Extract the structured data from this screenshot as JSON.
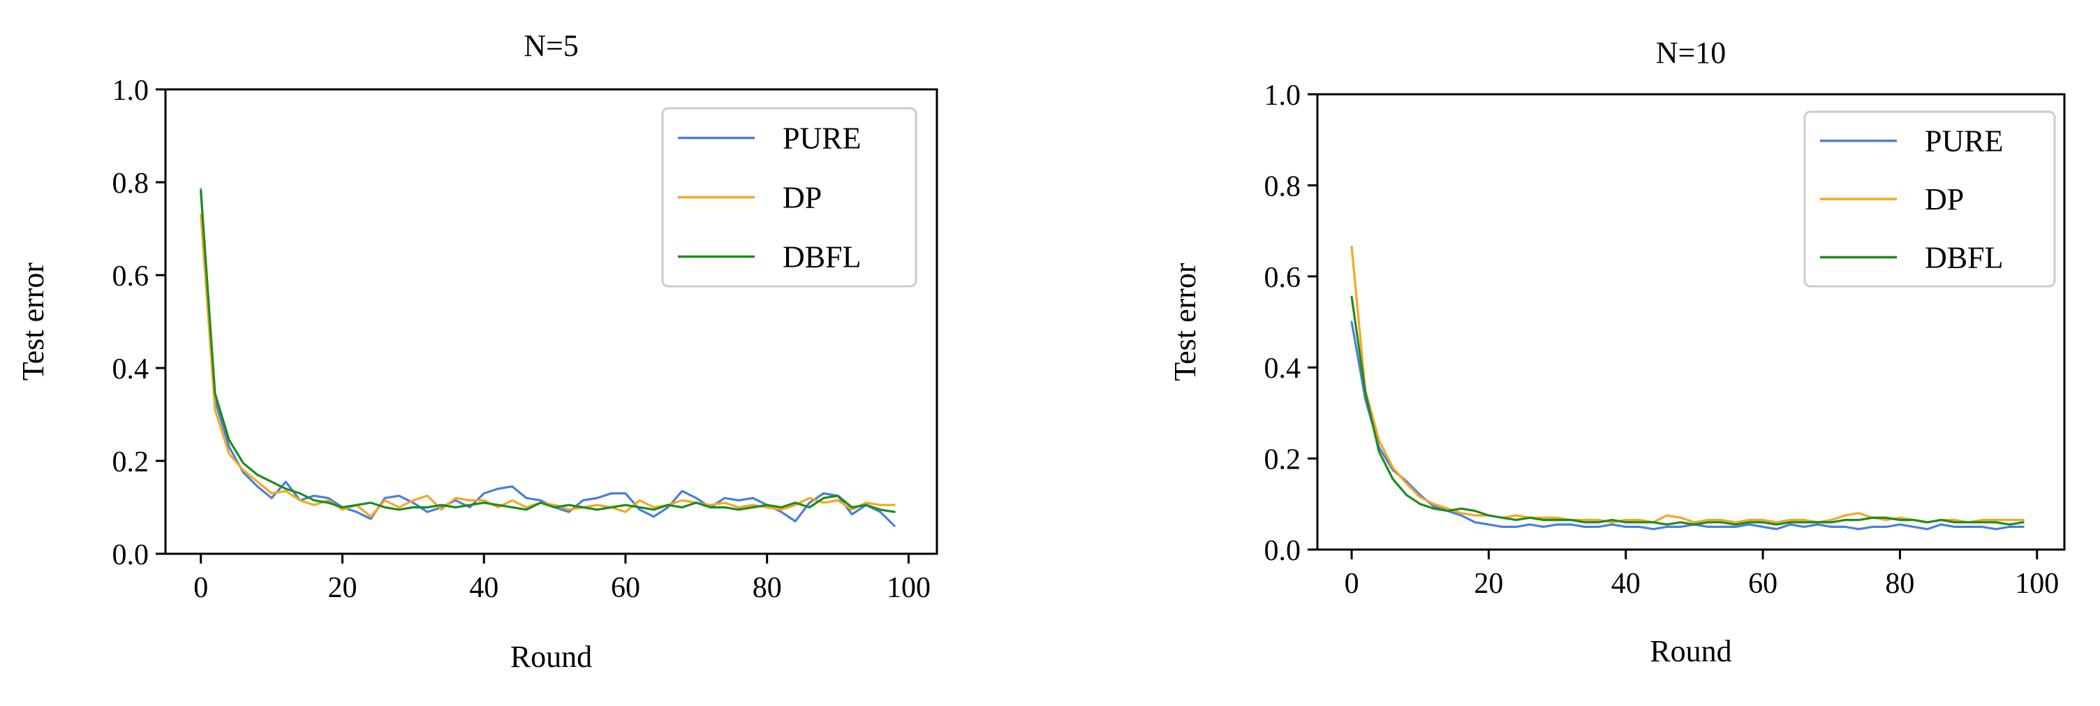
{
  "chart_data": [
    {
      "type": "line",
      "title": "N=5",
      "xlabel": "Round",
      "ylabel": "Test error",
      "xlim": [
        -5,
        104
      ],
      "ylim": [
        0.0,
        1.0
      ],
      "xticks": [
        0,
        20,
        40,
        60,
        80,
        100
      ],
      "yticks": [
        0.0,
        0.2,
        0.4,
        0.6,
        0.8,
        1.0
      ],
      "xtick_labels": [
        "0",
        "20",
        "40",
        "60",
        "80",
        "100"
      ],
      "ytick_labels": [
        "0.0",
        "0.2",
        "0.4",
        "0.6",
        "0.8",
        "1.0"
      ],
      "grid": false,
      "legend_position": "upper right",
      "x": [
        0,
        2,
        4,
        6,
        8,
        10,
        12,
        14,
        16,
        18,
        20,
        22,
        24,
        26,
        28,
        30,
        32,
        34,
        36,
        38,
        40,
        42,
        44,
        46,
        48,
        50,
        52,
        54,
        56,
        58,
        60,
        62,
        64,
        66,
        68,
        70,
        72,
        74,
        76,
        78,
        80,
        82,
        84,
        86,
        88,
        90,
        92,
        94,
        96,
        98
      ],
      "series": [
        {
          "name": "PURE",
          "color": "#4a7fdc",
          "values": [
            0.785,
            0.33,
            0.23,
            0.175,
            0.145,
            0.12,
            0.155,
            0.115,
            0.125,
            0.12,
            0.1,
            0.09,
            0.075,
            0.12,
            0.125,
            0.11,
            0.09,
            0.1,
            0.115,
            0.1,
            0.13,
            0.14,
            0.145,
            0.12,
            0.115,
            0.1,
            0.09,
            0.115,
            0.12,
            0.13,
            0.13,
            0.095,
            0.08,
            0.1,
            0.135,
            0.12,
            0.1,
            0.12,
            0.115,
            0.12,
            0.105,
            0.09,
            0.07,
            0.11,
            0.13,
            0.125,
            0.085,
            0.105,
            0.09,
            0.06
          ]
        },
        {
          "name": "DP",
          "color": "#f5a623",
          "values": [
            0.73,
            0.31,
            0.215,
            0.18,
            0.155,
            0.13,
            0.135,
            0.115,
            0.105,
            0.115,
            0.095,
            0.105,
            0.08,
            0.115,
            0.1,
            0.115,
            0.125,
            0.095,
            0.12,
            0.115,
            0.115,
            0.1,
            0.115,
            0.1,
            0.11,
            0.105,
            0.095,
            0.1,
            0.105,
            0.1,
            0.09,
            0.115,
            0.1,
            0.105,
            0.115,
            0.11,
            0.105,
            0.11,
            0.1,
            0.105,
            0.1,
            0.095,
            0.105,
            0.12,
            0.11,
            0.115,
            0.095,
            0.11,
            0.105,
            0.105
          ]
        },
        {
          "name": "DBFL",
          "color": "#1e8c1e",
          "values": [
            0.78,
            0.345,
            0.245,
            0.195,
            0.17,
            0.155,
            0.14,
            0.13,
            0.115,
            0.11,
            0.1,
            0.105,
            0.11,
            0.1,
            0.095,
            0.1,
            0.1,
            0.105,
            0.1,
            0.105,
            0.11,
            0.105,
            0.1,
            0.095,
            0.11,
            0.1,
            0.105,
            0.1,
            0.095,
            0.1,
            0.105,
            0.1,
            0.095,
            0.105,
            0.1,
            0.11,
            0.1,
            0.1,
            0.095,
            0.1,
            0.105,
            0.1,
            0.11,
            0.1,
            0.12,
            0.125,
            0.1,
            0.105,
            0.095,
            0.09
          ]
        }
      ]
    },
    {
      "type": "line",
      "title": "N=10",
      "xlabel": "Round",
      "ylabel": "Test error",
      "xlim": [
        -5,
        104
      ],
      "ylim": [
        0.0,
        1.0
      ],
      "xticks": [
        0,
        20,
        40,
        60,
        80,
        100
      ],
      "yticks": [
        0.0,
        0.2,
        0.4,
        0.6,
        0.8,
        1.0
      ],
      "xtick_labels": [
        "0",
        "20",
        "40",
        "60",
        "80",
        "100"
      ],
      "ytick_labels": [
        "0.0",
        "0.2",
        "0.4",
        "0.6",
        "0.8",
        "1.0"
      ],
      "grid": false,
      "legend_position": "upper right",
      "x": [
        0,
        2,
        4,
        6,
        8,
        10,
        12,
        14,
        16,
        18,
        20,
        22,
        24,
        26,
        28,
        30,
        32,
        34,
        36,
        38,
        40,
        42,
        44,
        46,
        48,
        50,
        52,
        54,
        56,
        58,
        60,
        62,
        64,
        66,
        68,
        70,
        72,
        74,
        76,
        78,
        80,
        82,
        84,
        86,
        88,
        90,
        92,
        94,
        96,
        98
      ],
      "series": [
        {
          "name": "PURE",
          "color": "#4a7fdc",
          "values": [
            0.5,
            0.33,
            0.225,
            0.175,
            0.15,
            0.12,
            0.095,
            0.085,
            0.075,
            0.06,
            0.055,
            0.05,
            0.05,
            0.055,
            0.05,
            0.055,
            0.055,
            0.05,
            0.05,
            0.055,
            0.05,
            0.05,
            0.045,
            0.05,
            0.05,
            0.055,
            0.05,
            0.05,
            0.05,
            0.055,
            0.05,
            0.045,
            0.055,
            0.05,
            0.055,
            0.05,
            0.05,
            0.045,
            0.05,
            0.05,
            0.055,
            0.05,
            0.045,
            0.055,
            0.05,
            0.05,
            0.05,
            0.045,
            0.05,
            0.05
          ]
        },
        {
          "name": "DP",
          "color": "#f5a623",
          "values": [
            0.665,
            0.35,
            0.24,
            0.18,
            0.145,
            0.115,
            0.1,
            0.09,
            0.08,
            0.075,
            0.075,
            0.07,
            0.075,
            0.07,
            0.07,
            0.07,
            0.065,
            0.065,
            0.065,
            0.06,
            0.065,
            0.065,
            0.06,
            0.075,
            0.07,
            0.06,
            0.065,
            0.065,
            0.06,
            0.065,
            0.065,
            0.06,
            0.065,
            0.065,
            0.06,
            0.065,
            0.075,
            0.08,
            0.07,
            0.065,
            0.07,
            0.065,
            0.06,
            0.065,
            0.065,
            0.06,
            0.065,
            0.065,
            0.065,
            0.065
          ]
        },
        {
          "name": "DBFL",
          "color": "#1e8c1e",
          "values": [
            0.555,
            0.345,
            0.215,
            0.155,
            0.12,
            0.1,
            0.09,
            0.085,
            0.09,
            0.085,
            0.075,
            0.07,
            0.065,
            0.07,
            0.065,
            0.065,
            0.065,
            0.06,
            0.06,
            0.065,
            0.06,
            0.06,
            0.06,
            0.055,
            0.06,
            0.055,
            0.06,
            0.06,
            0.055,
            0.06,
            0.06,
            0.055,
            0.06,
            0.06,
            0.06,
            0.06,
            0.065,
            0.065,
            0.07,
            0.07,
            0.065,
            0.065,
            0.06,
            0.065,
            0.06,
            0.06,
            0.06,
            0.06,
            0.055,
            0.06
          ]
        }
      ]
    }
  ]
}
